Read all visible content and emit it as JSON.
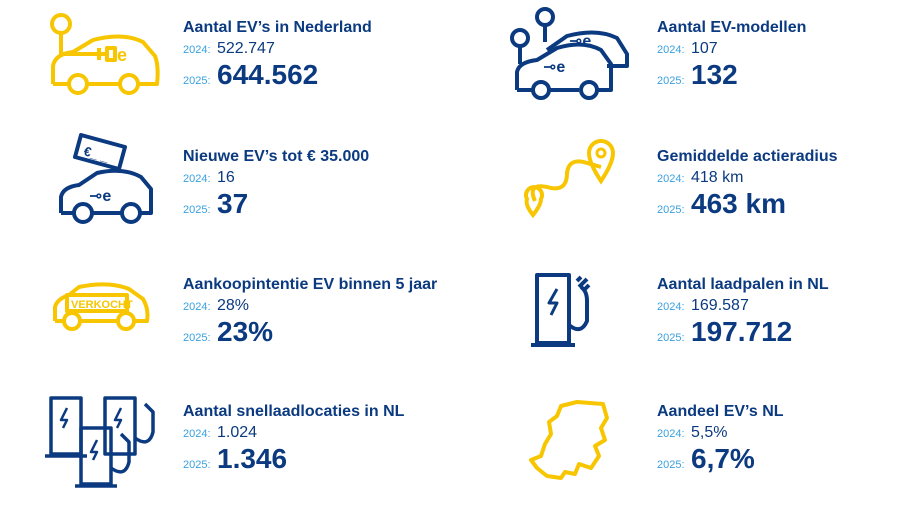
{
  "colors": {
    "navy": "#0b3a80",
    "light_blue": "#3aa0df",
    "yellow": "#f7c600"
  },
  "items": [
    {
      "icon": "ev-car-plug-icon",
      "title": "Aantal EV’s in Nederland",
      "label_2024": "2024:",
      "value_2024": "522.747",
      "label_2025": "2025:",
      "value_2025": "644.562"
    },
    {
      "icon": "ev-models-icon",
      "title": "Aantal EV-modellen",
      "label_2024": "2024:",
      "value_2024": "107",
      "label_2025": "2025:",
      "value_2025": "132"
    },
    {
      "icon": "ev-price-tag-icon",
      "title": "Nieuwe EV’s tot € 35.000",
      "label_2024": "2024:",
      "value_2024": "16",
      "label_2025": "2025:",
      "value_2025": "37",
      "tag_text": "€_ _"
    },
    {
      "icon": "route-pin-icon",
      "title": "Gemiddelde actieradius",
      "label_2024": "2024:",
      "value_2024": "418 km",
      "label_2025": "2025:",
      "value_2025": "463 km"
    },
    {
      "icon": "sold-car-icon",
      "title": "Aankoopintentie EV binnen 5 jaar",
      "label_2024": "2024:",
      "value_2024": "28%",
      "label_2025": "2025:",
      "value_2025": "23%",
      "sign_text": "VERKOCHT"
    },
    {
      "icon": "charging-station-icon",
      "title": "Aantal laadpalen in NL",
      "label_2024": "2024:",
      "value_2024": "169.587",
      "label_2025": "2025:",
      "value_2025": "197.712"
    },
    {
      "icon": "fast-charging-stations-icon",
      "title": "Aantal snellaadlocaties in NL",
      "label_2024": "2024:",
      "value_2024": "1.024",
      "label_2025": "2025:",
      "value_2025": "1.346"
    },
    {
      "icon": "netherlands-map-icon",
      "title": "Aandeel EV’s NL",
      "label_2024": "2024:",
      "value_2024": "5,5%",
      "label_2025": "2025:",
      "value_2025": "6,7%"
    }
  ]
}
